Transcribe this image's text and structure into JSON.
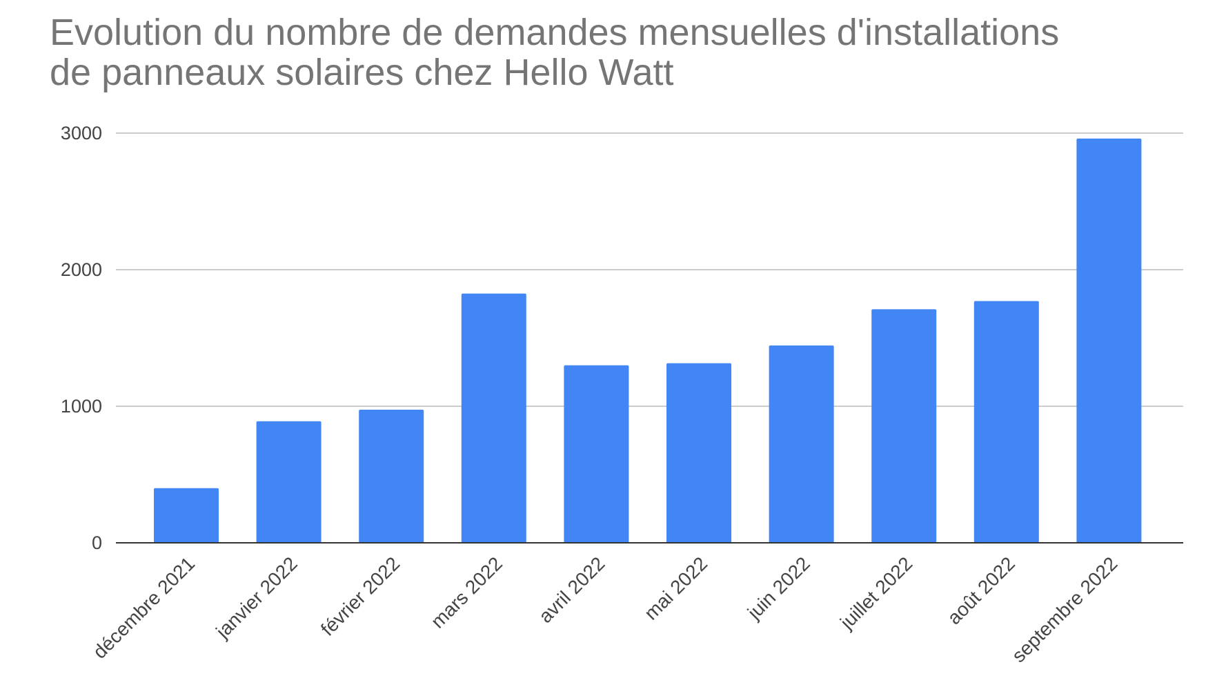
{
  "chart_data": {
    "type": "bar",
    "title": "Evolution du nombre de demandes mensuelles d'installations\nde panneaux solaires chez Hello Watt",
    "xlabel": "",
    "ylabel": "",
    "categories": [
      "décembre 2021",
      "janvier 2022",
      "février 2022",
      "mars 2022",
      "avril 2022",
      "mai 2022",
      "juin 2022",
      "juillet 2022",
      "août 2022",
      "septembre 2022"
    ],
    "values": [
      400,
      890,
      975,
      1825,
      1300,
      1315,
      1445,
      1710,
      1770,
      2960
    ],
    "ylim": [
      0,
      3000
    ],
    "yticks": [
      "0",
      "1000",
      "2000",
      "3000"
    ],
    "grid": true,
    "legend": "none",
    "colors": {
      "bar": "#4285f4",
      "grid": "#cccccc",
      "axis": "#333333",
      "title": "#757575",
      "labels": "#444444"
    }
  }
}
